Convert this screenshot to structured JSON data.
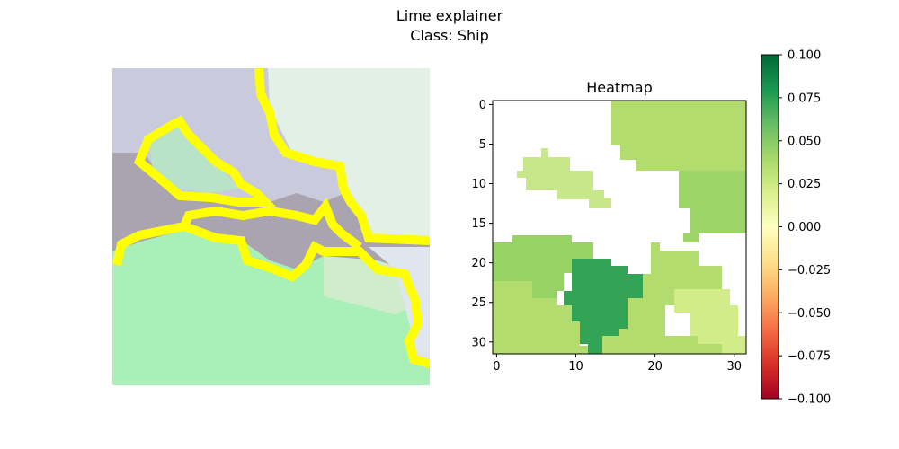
{
  "figure": {
    "suptitle_line1": "Lime explainer",
    "suptitle_line2": "Class: Ship"
  },
  "image_panel": {
    "description_colors": {
      "sky": "#c9cbdd",
      "cloud_light": "#e2f0e6",
      "rock_dark": "#a9a4b0",
      "vegetation": "#a8f0b8",
      "boundary": "#ffff00"
    }
  },
  "chart_data": {
    "type": "heatmap",
    "title": "Heatmap",
    "xlabel": "",
    "ylabel": "",
    "x_ticks": [
      0,
      10,
      20,
      30
    ],
    "y_ticks": [
      0,
      5,
      10,
      15,
      20,
      25,
      30
    ],
    "xlim": [
      -0.5,
      31.5
    ],
    "ylim": [
      31.5,
      -0.5
    ],
    "grid": false,
    "colormap": "RdYlGn",
    "vmin": -0.1,
    "vmax": 0.1,
    "colorbar_ticks": [
      "0.100",
      "0.075",
      "0.050",
      "0.025",
      "0.000",
      "−0.025",
      "−0.050",
      "−0.075",
      "−0.100"
    ],
    "segments": [
      {
        "id": "top-right-region",
        "weight": 0.055,
        "color": "#b2dc6e"
      },
      {
        "id": "right-middle-region",
        "weight": 0.055,
        "color": "#b2dc6e"
      },
      {
        "id": "left-ship-region",
        "weight": 0.03,
        "color": "#c8e68a"
      },
      {
        "id": "bottom-left-region",
        "weight": 0.065,
        "color": "#97d265"
      },
      {
        "id": "bottom-center-region",
        "weight": 0.09,
        "color": "#33a456"
      },
      {
        "id": "bottom-right-region",
        "weight": 0.055,
        "color": "#b2dc6e"
      },
      {
        "id": "bottom-right-inner-region",
        "weight": 0.035,
        "color": "#d2ec8a"
      }
    ]
  }
}
